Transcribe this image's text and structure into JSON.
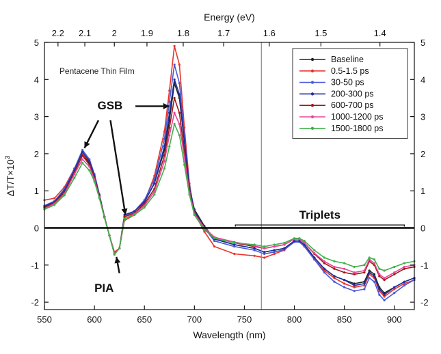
{
  "chart_data": {
    "type": "line",
    "title": "",
    "xlabel": "Wavelength (nm)",
    "ylabel_main": "ΔT/T×10",
    "ylabel_exp": "3",
    "x2label": "Energy (eV)",
    "xlim": [
      550,
      920
    ],
    "ylim": [
      -2.2,
      5
    ],
    "xticks": [
      550,
      600,
      650,
      700,
      750,
      800,
      850,
      900
    ],
    "yticks": [
      -2,
      -1,
      0,
      1,
      2,
      3,
      4,
      5
    ],
    "y_tick_labels": [
      "-2",
      "-1",
      "0",
      "1",
      "2",
      "3",
      "4",
      "5"
    ],
    "energy_ticks": [
      {
        "label": "2.2",
        "ev": 2.2
      },
      {
        "label": "2.1",
        "ev": 2.1
      },
      {
        "label": "2",
        "ev": 2.0
      },
      {
        "label": "1.9",
        "ev": 1.9
      },
      {
        "label": "1.8",
        "ev": 1.8
      },
      {
        "label": "1.7",
        "ev": 1.7
      },
      {
        "label": "1.6",
        "ev": 1.6
      },
      {
        "label": "1.5",
        "ev": 1.5
      },
      {
        "label": "1.4",
        "ev": 1.4
      }
    ],
    "grid": false,
    "legend_position": "top-right",
    "vline_x": 767,
    "zero_line": true,
    "annotations": {
      "film": "Pentacene Thin Film",
      "gsb": "GSB",
      "pia": "PIA",
      "triplets": "Triplets",
      "triplets_range": [
        741,
        910
      ]
    },
    "x": [
      550,
      560,
      570,
      580,
      588,
      595,
      600,
      605,
      610,
      615,
      620,
      625,
      630,
      640,
      650,
      660,
      670,
      675,
      680,
      685,
      690,
      695,
      700,
      710,
      720,
      740,
      760,
      770,
      780,
      790,
      800,
      805,
      810,
      820,
      830,
      840,
      850,
      860,
      870,
      875,
      880,
      885,
      890,
      900,
      910,
      920
    ],
    "series": [
      {
        "name": "Baseline",
        "color": "#222222",
        "values": [
          0.55,
          0.7,
          1.0,
          1.6,
          2.0,
          1.75,
          1.4,
          0.9,
          0.3,
          -0.2,
          -0.7,
          -0.55,
          0.3,
          0.45,
          0.7,
          1.2,
          2.1,
          2.9,
          3.9,
          3.5,
          2.3,
          1.1,
          0.5,
          0.05,
          -0.3,
          -0.45,
          -0.55,
          -0.65,
          -0.6,
          -0.55,
          -0.35,
          -0.35,
          -0.45,
          -0.8,
          -1.1,
          -1.3,
          -1.4,
          -1.5,
          -1.45,
          -1.15,
          -1.25,
          -1.6,
          -1.75,
          -1.6,
          -1.45,
          -1.35
        ]
      },
      {
        "name": "0.5-1.5 ps",
        "color": "#e8342a",
        "values": [
          0.75,
          0.8,
          1.1,
          1.6,
          2.0,
          1.8,
          1.45,
          0.9,
          0.3,
          -0.2,
          -0.65,
          -0.55,
          0.2,
          0.35,
          0.7,
          1.4,
          2.6,
          3.7,
          4.9,
          4.4,
          2.7,
          1.2,
          0.4,
          -0.1,
          -0.5,
          -0.7,
          -0.75,
          -0.8,
          -0.7,
          -0.6,
          -0.35,
          -0.35,
          -0.5,
          -0.85,
          -1.15,
          -1.35,
          -1.5,
          -1.6,
          -1.55,
          -1.25,
          -1.35,
          -1.7,
          -1.85,
          -1.65,
          -1.5,
          -1.4
        ]
      },
      {
        "name": "30-50 ps",
        "color": "#4a5ad8",
        "values": [
          0.6,
          0.72,
          1.05,
          1.6,
          2.1,
          1.85,
          1.45,
          0.9,
          0.3,
          -0.2,
          -0.7,
          -0.55,
          0.3,
          0.45,
          0.75,
          1.3,
          2.4,
          3.4,
          4.4,
          3.9,
          2.5,
          1.15,
          0.45,
          0.0,
          -0.35,
          -0.5,
          -0.6,
          -0.7,
          -0.65,
          -0.58,
          -0.38,
          -0.38,
          -0.5,
          -0.85,
          -1.2,
          -1.45,
          -1.6,
          -1.7,
          -1.65,
          -1.35,
          -1.45,
          -1.8,
          -1.95,
          -1.75,
          -1.55,
          -1.4
        ]
      },
      {
        "name": "200-300 ps",
        "color": "#1f2f9a",
        "values": [
          0.58,
          0.7,
          1.0,
          1.55,
          2.05,
          1.8,
          1.4,
          0.88,
          0.3,
          -0.2,
          -0.7,
          -0.55,
          0.35,
          0.45,
          0.7,
          1.2,
          2.2,
          3.1,
          4.0,
          3.6,
          2.35,
          1.1,
          0.45,
          0.0,
          -0.3,
          -0.45,
          -0.55,
          -0.65,
          -0.6,
          -0.55,
          -0.35,
          -0.35,
          -0.45,
          -0.8,
          -1.1,
          -1.3,
          -1.4,
          -1.55,
          -1.5,
          -1.2,
          -1.3,
          -1.65,
          -1.8,
          -1.6,
          -1.45,
          -1.35
        ]
      },
      {
        "name": "600-700 ps",
        "color": "#a01818",
        "values": [
          0.55,
          0.68,
          0.95,
          1.5,
          1.95,
          1.7,
          1.35,
          0.85,
          0.3,
          -0.2,
          -0.7,
          -0.55,
          0.3,
          0.4,
          0.65,
          1.05,
          1.95,
          2.7,
          3.5,
          3.1,
          2.05,
          1.0,
          0.4,
          0.0,
          -0.25,
          -0.4,
          -0.5,
          -0.55,
          -0.5,
          -0.45,
          -0.3,
          -0.3,
          -0.4,
          -0.7,
          -0.95,
          -1.1,
          -1.2,
          -1.25,
          -1.2,
          -0.9,
          -1.0,
          -1.3,
          -1.4,
          -1.25,
          -1.1,
          -1.05
        ]
      },
      {
        "name": "1000-1200 ps",
        "color": "#e8449a",
        "values": [
          0.52,
          0.65,
          0.92,
          1.45,
          1.85,
          1.65,
          1.3,
          0.82,
          0.28,
          -0.2,
          -0.7,
          -0.55,
          0.25,
          0.38,
          0.6,
          0.98,
          1.8,
          2.5,
          3.1,
          2.8,
          1.9,
          0.95,
          0.38,
          0.0,
          -0.25,
          -0.38,
          -0.48,
          -0.55,
          -0.5,
          -0.45,
          -0.3,
          -0.3,
          -0.4,
          -0.68,
          -0.9,
          -1.05,
          -1.1,
          -1.2,
          -1.15,
          -0.85,
          -0.95,
          -1.25,
          -1.35,
          -1.2,
          -1.05,
          -1.0
        ]
      },
      {
        "name": "1500-1800 ps",
        "color": "#3fb04a",
        "values": [
          0.5,
          0.62,
          0.88,
          1.35,
          1.75,
          1.55,
          1.25,
          0.8,
          0.28,
          -0.2,
          -0.72,
          -0.55,
          0.25,
          0.35,
          0.55,
          0.9,
          1.6,
          2.2,
          2.8,
          2.5,
          1.7,
          0.9,
          0.35,
          -0.05,
          -0.28,
          -0.4,
          -0.45,
          -0.5,
          -0.45,
          -0.4,
          -0.28,
          -0.28,
          -0.35,
          -0.6,
          -0.8,
          -0.9,
          -0.95,
          -1.05,
          -1.0,
          -0.8,
          -0.85,
          -1.1,
          -1.15,
          -1.05,
          -0.95,
          -0.9
        ]
      }
    ]
  }
}
